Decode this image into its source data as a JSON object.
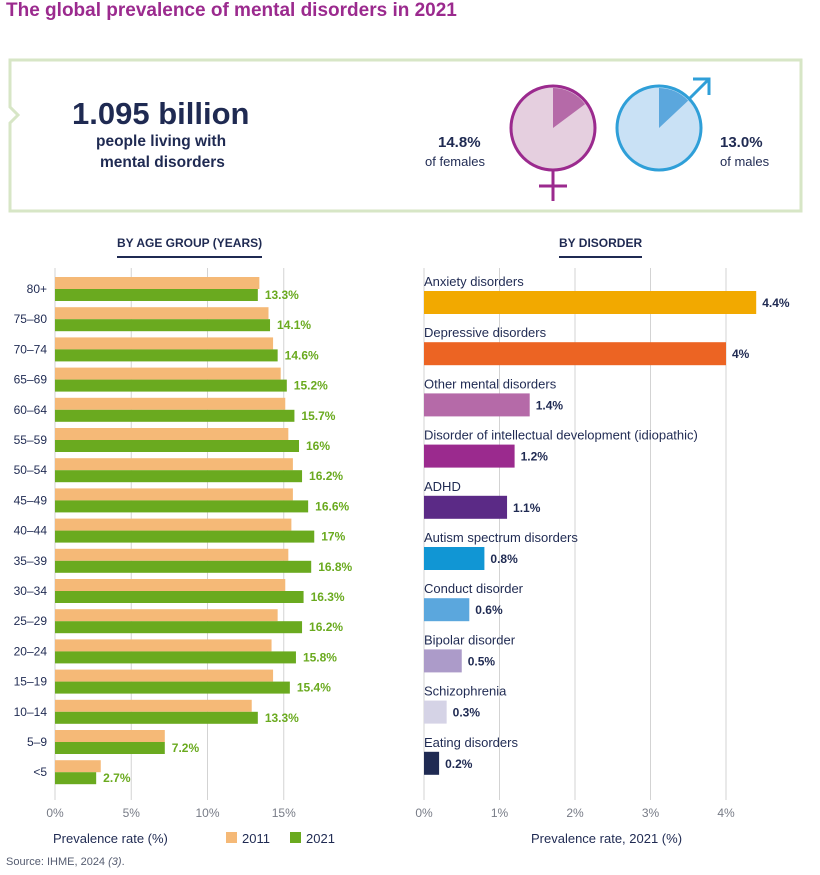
{
  "title": "The global prevalence of mental disorders in 2021",
  "summary": {
    "total_value": "1.095 billion",
    "total_label_line1": "people living with",
    "total_label_line2": "mental disorders",
    "female_value": "14.8%",
    "female_label": "of females",
    "male_value": "13.0%",
    "male_label": "of males",
    "female_share": 0.148,
    "male_share": 0.13
  },
  "colors": {
    "title": "#9b2a8e",
    "navy": "#1f2a52",
    "bar_2011": "#f5b977",
    "bar_2021": "#6aaa1f",
    "female_ring": "#9b2a8e",
    "female_fill": "#e5cfdf",
    "female_slice": "#b56aa8",
    "male_ring": "#2f9fd8",
    "male_fill": "#c9e1f5",
    "male_slice": "#5ba7dd",
    "panel_border": "#d7e6c6"
  },
  "chart_data": [
    {
      "type": "bar",
      "title": "BY AGE GROUP (YEARS)",
      "orientation": "horizontal",
      "categories": [
        "80+",
        "75–80",
        "70–74",
        "65–69",
        "60–64",
        "55–59",
        "50–54",
        "45–49",
        "40–44",
        "35–39",
        "30–34",
        "25–29",
        "20–24",
        "15–19",
        "10–14",
        "5–9",
        "<5"
      ],
      "series": [
        {
          "name": "2011",
          "color": "#f5b977",
          "values": [
            13.4,
            14.0,
            14.3,
            14.8,
            15.1,
            15.3,
            15.6,
            15.6,
            15.5,
            15.3,
            15.1,
            14.6,
            14.2,
            14.3,
            12.9,
            7.2,
            3.0
          ]
        },
        {
          "name": "2021",
          "color": "#6aaa1f",
          "values": [
            13.3,
            14.1,
            14.6,
            15.2,
            15.7,
            16.0,
            16.2,
            16.6,
            17.0,
            16.8,
            16.3,
            16.2,
            15.8,
            15.4,
            13.3,
            7.2,
            2.7
          ],
          "labels": [
            "13.3%",
            "14.1%",
            "14.6%",
            "15.2%",
            "15.7%",
            "16%",
            "16.2%",
            "16.6%",
            "17%",
            "16.8%",
            "16.3%",
            "16.2%",
            "15.8%",
            "15.4%",
            "13.3%",
            "7.2%",
            "2.7%"
          ]
        }
      ],
      "xlim": [
        0,
        20
      ],
      "xticks": [
        0,
        5,
        10,
        15
      ],
      "xtick_labels": [
        "0%",
        "5%",
        "10%",
        "15%"
      ],
      "xlabel": "Prevalence rate (%)",
      "legend": [
        "2011",
        "2021"
      ],
      "legend_position": "bottom"
    },
    {
      "type": "bar",
      "title": "BY DISORDER",
      "orientation": "horizontal",
      "categories": [
        "Anxiety disorders",
        "Depressive disorders",
        "Other mental disorders",
        "Disorder of intellectual development (idiopathic)",
        "ADHD",
        "Autism spectrum disorders",
        "Conduct disorder",
        "Bipolar disorder",
        "Schizophrenia",
        "Eating disorders"
      ],
      "values": [
        4.4,
        4.0,
        1.4,
        1.2,
        1.1,
        0.8,
        0.6,
        0.5,
        0.3,
        0.2
      ],
      "labels": [
        "4.4%",
        "4%",
        "1.4%",
        "1.2%",
        "1.1%",
        "0.8%",
        "0.6%",
        "0.5%",
        "0.3%",
        "0.2%"
      ],
      "colors": [
        "#f2a900",
        "#ec6423",
        "#b56aa8",
        "#9b2a8e",
        "#5b2a86",
        "#1196d4",
        "#5ba7dd",
        "#ac9bc9",
        "#d5d3e6",
        "#1f2a52"
      ],
      "xlim": [
        0,
        5
      ],
      "xticks": [
        0,
        1,
        2,
        3,
        4
      ],
      "xtick_labels": [
        "0%",
        "1%",
        "2%",
        "3%",
        "4%"
      ],
      "xlabel": "Prevalence rate, 2021 (%)"
    }
  ],
  "source": {
    "text": "Source: IHME, 2024 ",
    "ref": "(3)",
    "end": "."
  }
}
